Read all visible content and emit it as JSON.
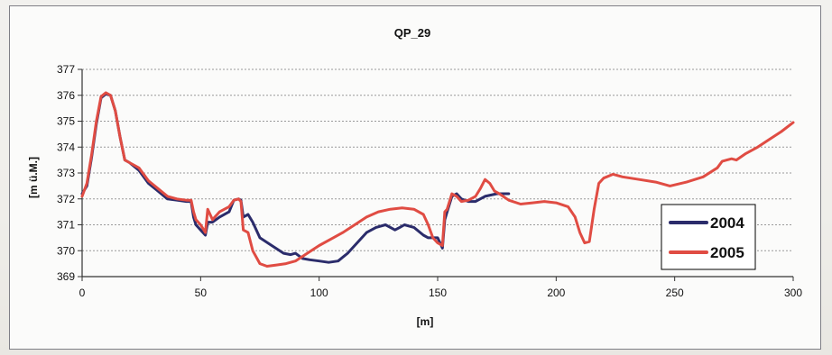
{
  "chart_data": {
    "type": "line",
    "title": "QP_29",
    "xlabel": "[m]",
    "ylabel": "[m ü.M.]",
    "xlim": [
      0,
      300
    ],
    "ylim": [
      369,
      377
    ],
    "x_ticks": [
      0,
      50,
      100,
      150,
      200,
      250,
      300
    ],
    "y_ticks": [
      369,
      370,
      371,
      372,
      373,
      374,
      375,
      376,
      377
    ],
    "grid": "horizontal dashed",
    "legend_position": "right",
    "series": [
      {
        "name": "2004",
        "color": "#2b2c6b",
        "x": [
          0,
          2,
          4,
          6,
          8,
          10,
          12,
          14,
          16,
          18,
          20,
          24,
          28,
          32,
          36,
          40,
          44,
          46,
          47,
          48,
          50,
          52,
          53,
          55,
          58,
          62,
          64,
          66,
          67,
          68,
          70,
          72,
          75,
          80,
          85,
          88,
          90,
          93,
          96,
          100,
          104,
          108,
          112,
          116,
          120,
          124,
          128,
          132,
          134,
          136,
          140,
          144,
          146,
          148,
          150,
          152,
          153,
          154,
          156,
          158,
          160,
          163,
          166,
          170,
          175,
          180
        ],
        "y": [
          372.2,
          372.5,
          373.6,
          374.9,
          375.9,
          376.05,
          376.0,
          375.4,
          374.4,
          373.5,
          373.4,
          373.1,
          372.6,
          372.3,
          372.0,
          371.95,
          371.9,
          371.9,
          371.3,
          371.0,
          370.8,
          370.6,
          371.1,
          371.1,
          371.3,
          371.5,
          371.95,
          372.0,
          371.95,
          371.3,
          371.4,
          371.1,
          370.5,
          370.2,
          369.9,
          369.85,
          369.9,
          369.7,
          369.65,
          369.6,
          369.55,
          369.6,
          369.9,
          370.3,
          370.7,
          370.9,
          371.0,
          370.8,
          370.9,
          371.0,
          370.9,
          370.6,
          370.5,
          370.5,
          370.5,
          370.1,
          371.2,
          371.5,
          372.1,
          372.2,
          372.0,
          371.9,
          371.9,
          372.1,
          372.2,
          372.2
        ]
      },
      {
        "name": "2005",
        "color": "#e04c43",
        "x": [
          0,
          2,
          4,
          6,
          8,
          10,
          12,
          14,
          16,
          18,
          20,
          24,
          28,
          32,
          36,
          40,
          44,
          46,
          47,
          48,
          50,
          52,
          53,
          55,
          58,
          62,
          64,
          66,
          67,
          68,
          70,
          72,
          75,
          78,
          82,
          86,
          90,
          95,
          100,
          105,
          110,
          115,
          120,
          125,
          130,
          135,
          140,
          144,
          146,
          148,
          150,
          152,
          153,
          154,
          156,
          158,
          160,
          163,
          166,
          168,
          170,
          172,
          174,
          176,
          180,
          185,
          190,
          195,
          200,
          205,
          208,
          210,
          212,
          214,
          216,
          218,
          220,
          224,
          228,
          235,
          242,
          248,
          255,
          262,
          268,
          270,
          272,
          274,
          276,
          280,
          285,
          290,
          295,
          300
        ],
        "y": [
          372.1,
          372.6,
          373.7,
          375.0,
          375.95,
          376.1,
          376.0,
          375.4,
          374.4,
          373.5,
          373.4,
          373.2,
          372.7,
          372.4,
          372.1,
          372.0,
          371.95,
          371.95,
          371.5,
          371.2,
          371.0,
          370.7,
          371.6,
          371.2,
          371.5,
          371.7,
          371.95,
          372.0,
          371.9,
          370.8,
          370.7,
          370.0,
          369.5,
          369.4,
          369.45,
          369.5,
          369.6,
          369.9,
          370.2,
          370.45,
          370.7,
          371.0,
          371.3,
          371.5,
          371.6,
          371.65,
          371.6,
          371.4,
          371.0,
          370.5,
          370.3,
          370.2,
          371.5,
          371.6,
          372.2,
          372.1,
          371.9,
          371.95,
          372.1,
          372.4,
          372.75,
          372.6,
          372.3,
          372.2,
          371.95,
          371.8,
          371.85,
          371.9,
          371.85,
          371.7,
          371.3,
          370.7,
          370.3,
          370.35,
          371.6,
          372.6,
          372.8,
          372.95,
          372.85,
          372.75,
          372.65,
          372.5,
          372.65,
          372.85,
          373.2,
          373.45,
          373.5,
          373.55,
          373.5,
          373.75,
          374.0,
          374.3,
          374.6,
          374.95
        ]
      }
    ]
  }
}
